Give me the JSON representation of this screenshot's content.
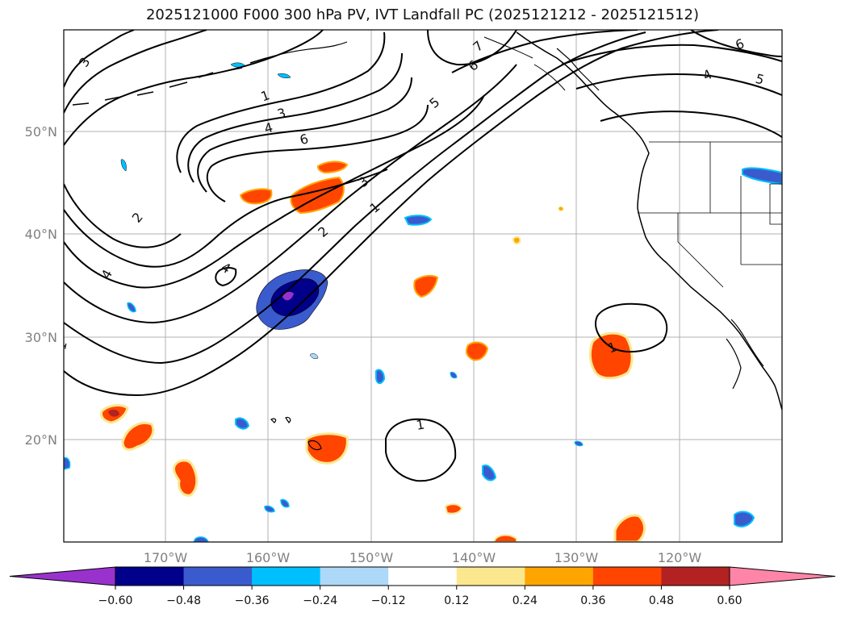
{
  "title": "2025121000 F000 300 hPa PV, IVT Landfall PC (2025121212 - 2025121512)",
  "axes": {
    "lon_ticks": [
      "170°W",
      "160°W",
      "150°W",
      "140°W",
      "130°W",
      "120°W"
    ],
    "lat_ticks": [
      "50°N",
      "40°N",
      "30°N",
      "20°N"
    ]
  },
  "colorbar": {
    "ticks": [
      "−0.60",
      "−0.48",
      "−0.36",
      "−0.24",
      "−0.12",
      "0.12",
      "0.24",
      "0.36",
      "0.48",
      "0.60"
    ],
    "colors": [
      "#9932cc",
      "#00008b",
      "#3a5bcd",
      "#00bfff",
      "#add8f8",
      "#ffffff",
      "#fbe78e",
      "#ffa500",
      "#ff4500",
      "#b22222",
      "#ff85a8"
    ]
  },
  "contour_labels": [
    "3",
    "1",
    "3",
    "4",
    "6",
    "2",
    "4",
    "4",
    "2",
    "1",
    "3",
    "5",
    "6",
    "7",
    "6",
    "4",
    "5",
    "1",
    "1",
    "1"
  ]
}
